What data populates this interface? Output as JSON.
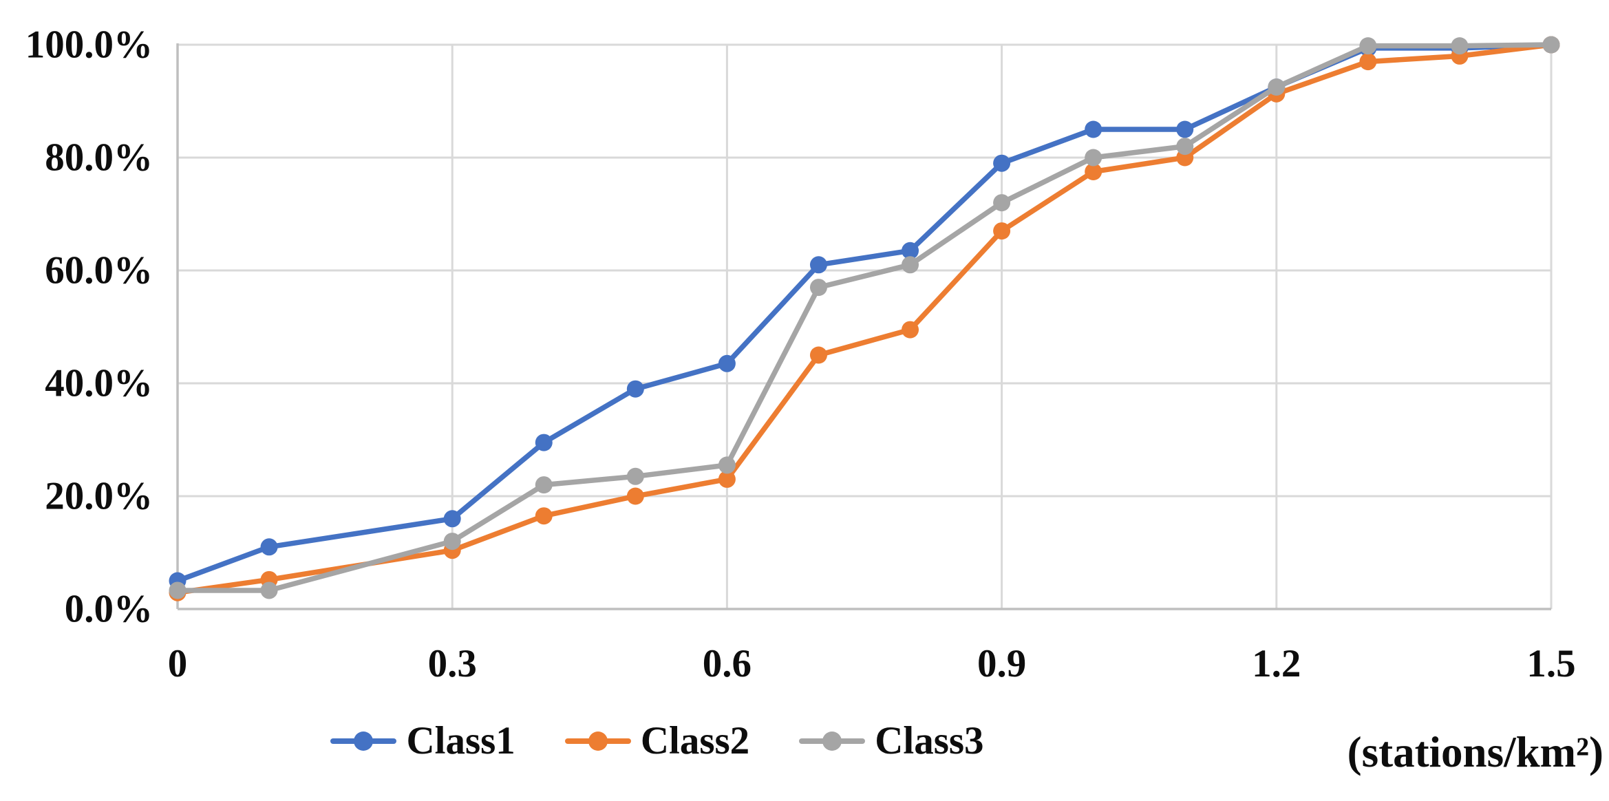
{
  "axis_title": "(stations/km²)",
  "legend": [
    {
      "label": "Class1",
      "color": "#4472C4"
    },
    {
      "label": "Class2",
      "color": "#ED7D31"
    },
    {
      "label": "Class3",
      "color": "#A5A5A5"
    }
  ],
  "chart_data": {
    "type": "line",
    "title": "",
    "xlabel": "(stations/km²)",
    "ylabel": "",
    "xlim": [
      0,
      1.5
    ],
    "ylim": [
      0,
      100
    ],
    "grid": true,
    "legend_position": "bottom-center",
    "gridline_color": "#D9D9D9",
    "axis_line_color": "#BFBFBF",
    "text_color": "#0d0d0d",
    "x": [
      0,
      0.1,
      0.3,
      0.4,
      0.5,
      0.6,
      0.7,
      0.8,
      0.9,
      1.0,
      1.1,
      1.2,
      1.3,
      1.4,
      1.5
    ],
    "x_ticks": [
      0,
      0.3,
      0.6,
      0.9,
      1.2,
      1.5
    ],
    "x_tick_labels": [
      "0",
      "0.3",
      "0.6",
      "0.9",
      "1.2",
      "1.5"
    ],
    "y_ticks": [
      0,
      20,
      40,
      60,
      80,
      100
    ],
    "y_tick_labels": [
      "0.0%",
      "20.0%",
      "40.0%",
      "60.0%",
      "80.0%",
      "100.0%"
    ],
    "series": [
      {
        "name": "Class1",
        "color": "#4472C4",
        "values": [
          5.0,
          11.0,
          16.0,
          29.5,
          39.0,
          43.5,
          61.0,
          63.5,
          79.0,
          85.0,
          85.0,
          92.5,
          99.4,
          99.4,
          100.0
        ]
      },
      {
        "name": "Class2",
        "color": "#ED7D31",
        "values": [
          2.9,
          5.2,
          10.4,
          16.5,
          20.0,
          23.0,
          45.0,
          49.5,
          67.0,
          77.5,
          80.0,
          91.3,
          97.0,
          98.0,
          100.0
        ]
      },
      {
        "name": "Class3",
        "color": "#A5A5A5",
        "values": [
          3.3,
          3.3,
          12.0,
          22.0,
          23.5,
          25.5,
          57.0,
          61.0,
          72.0,
          80.0,
          82.0,
          92.5,
          99.8,
          99.8,
          100.0
        ]
      }
    ]
  }
}
